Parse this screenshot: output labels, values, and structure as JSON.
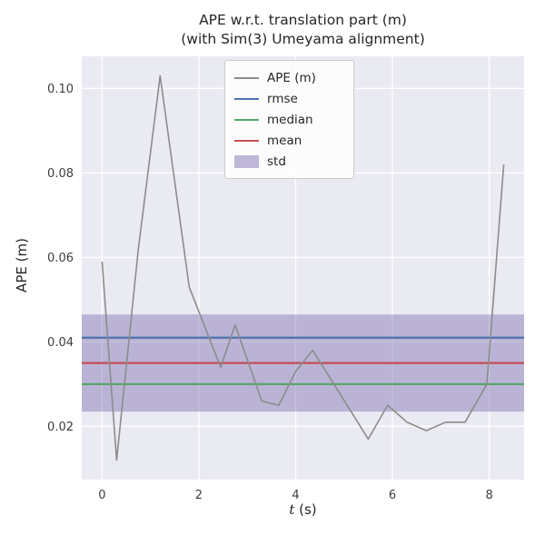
{
  "title": {
    "line1": "APE w.r.t. translation part (m)",
    "line2": "(with Sim(3) Umeyama alignment)"
  },
  "chart_data": {
    "type": "line",
    "title": "APE w.r.t. translation part (m)\n(with Sim(3) Umeyama alignment)",
    "xlabel": "t (s)",
    "xlabel_math": "t",
    "xlabel_rest": " (s)",
    "ylabel": "APE (m)",
    "xlim": [
      -0.42,
      8.72
    ],
    "ylim": [
      0.0074,
      0.1076
    ],
    "xticks": [
      0,
      2,
      4,
      6,
      8
    ],
    "yticks": [
      0.02,
      0.04,
      0.06,
      0.08,
      0.1
    ],
    "grid": true,
    "plot_bg": "#eaeaf2",
    "grid_color": "#ffffff",
    "legend_position": "upper center",
    "series": [
      {
        "name": "APE (m)",
        "kind": "line",
        "color": "#8c8c8c",
        "x": [
          0.0,
          0.3,
          0.75,
          1.2,
          1.8,
          2.45,
          2.75,
          3.3,
          3.65,
          4.0,
          4.35,
          4.9,
          5.5,
          5.9,
          6.3,
          6.7,
          7.1,
          7.5,
          7.95,
          8.3
        ],
        "y": [
          0.059,
          0.012,
          0.062,
          0.103,
          0.053,
          0.034,
          0.044,
          0.026,
          0.025,
          0.033,
          0.038,
          0.028,
          0.017,
          0.025,
          0.021,
          0.019,
          0.021,
          0.021,
          0.03,
          0.082
        ]
      },
      {
        "name": "rmse",
        "kind": "hline",
        "color": "#4c72b0",
        "value": 0.041
      },
      {
        "name": "median",
        "kind": "hline",
        "color": "#55a868",
        "value": 0.03
      },
      {
        "name": "mean",
        "kind": "hline",
        "color": "#c44e52",
        "value": 0.035
      },
      {
        "name": "std",
        "kind": "band",
        "color": "#8172b2",
        "opacity": 0.45,
        "low": 0.0235,
        "high": 0.0465
      }
    ]
  }
}
